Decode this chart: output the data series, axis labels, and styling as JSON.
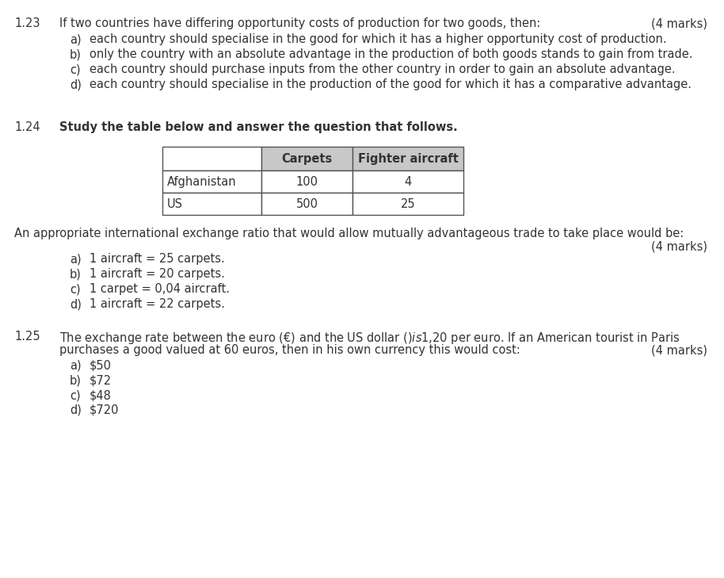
{
  "bg_color": "#ffffff",
  "q123_number": "1.23",
  "q123_text": "If two countries have differing opportunity costs of production for two goods, then:",
  "q123_marks": "(4 marks)",
  "q123_options": [
    "each country should specialise in the good for which it has a higher opportunity cost of production.",
    "only the country with an absolute advantage in the production of both goods stands to gain from trade.",
    "each country should purchase inputs from the other country in order to gain an absolute advantage.",
    "each country should specialise in the production of the good for which it has a comparative advantage."
  ],
  "q124_number": "1.24",
  "q124_text": "Study the table below and answer the question that follows.",
  "table_headers": [
    "Carpets",
    "Fighter aircraft"
  ],
  "table_rows": [
    [
      "Afghanistan",
      "100",
      "4"
    ],
    [
      "US",
      "500",
      "25"
    ]
  ],
  "table_header_bg": "#c8c8c8",
  "q124_followup": "An appropriate international exchange ratio that would allow mutually advantageous trade to take place would be:",
  "q124_marks": "(4 marks)",
  "q124_options": [
    "1 aircraft = 25 carpets.",
    "1 aircraft = 20 carpets.",
    "1 carpet = 0,04 aircraft.",
    "1 aircraft = 22 carpets."
  ],
  "q125_number": "1.25",
  "q125_line1": "The exchange rate between the euro (€) and the US dollar ($) is $1,20 per euro. If an American tourist in Paris",
  "q125_line2": "purchases a good valued at 60 euros, then in his own currency this would cost:",
  "q125_marks": "(4 marks)",
  "q125_options": [
    "$50",
    "$72",
    "$48",
    "$720"
  ],
  "option_labels": [
    "a)",
    "b)",
    "c)",
    "d)"
  ],
  "text_color": "#333333",
  "border_color": "#555555",
  "fontsize": 10.5
}
